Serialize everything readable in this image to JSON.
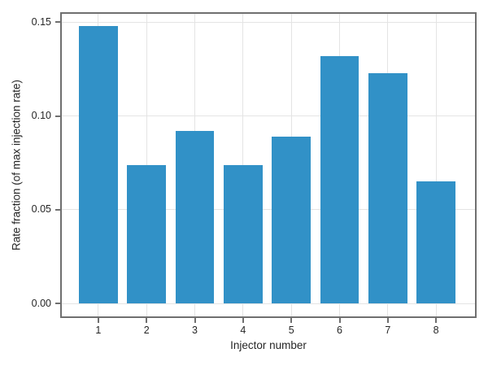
{
  "chart_data": {
    "type": "bar",
    "title": "",
    "xlabel": "Injector number",
    "ylabel": "Rate fraction (of max injection rate)",
    "categories": [
      "1",
      "2",
      "3",
      "4",
      "5",
      "6",
      "7",
      "8"
    ],
    "values": [
      0.148,
      0.074,
      0.092,
      0.074,
      0.089,
      0.132,
      0.123,
      0.065
    ],
    "yticks": {
      "values": [
        0.0,
        0.05,
        0.1,
        0.15
      ],
      "labels": [
        "0.00",
        "0.05",
        "0.10",
        "0.15"
      ]
    },
    "ylim": [
      -0.0077,
      0.1554
    ],
    "xlim": [
      0.21,
      8.84
    ],
    "bar_width": 0.8,
    "grid": true,
    "legend": "none",
    "colors": {
      "bar": "#3191c7",
      "grid": "#e4e4e4",
      "spine": "#6f6f6f",
      "text": "#262626"
    }
  }
}
